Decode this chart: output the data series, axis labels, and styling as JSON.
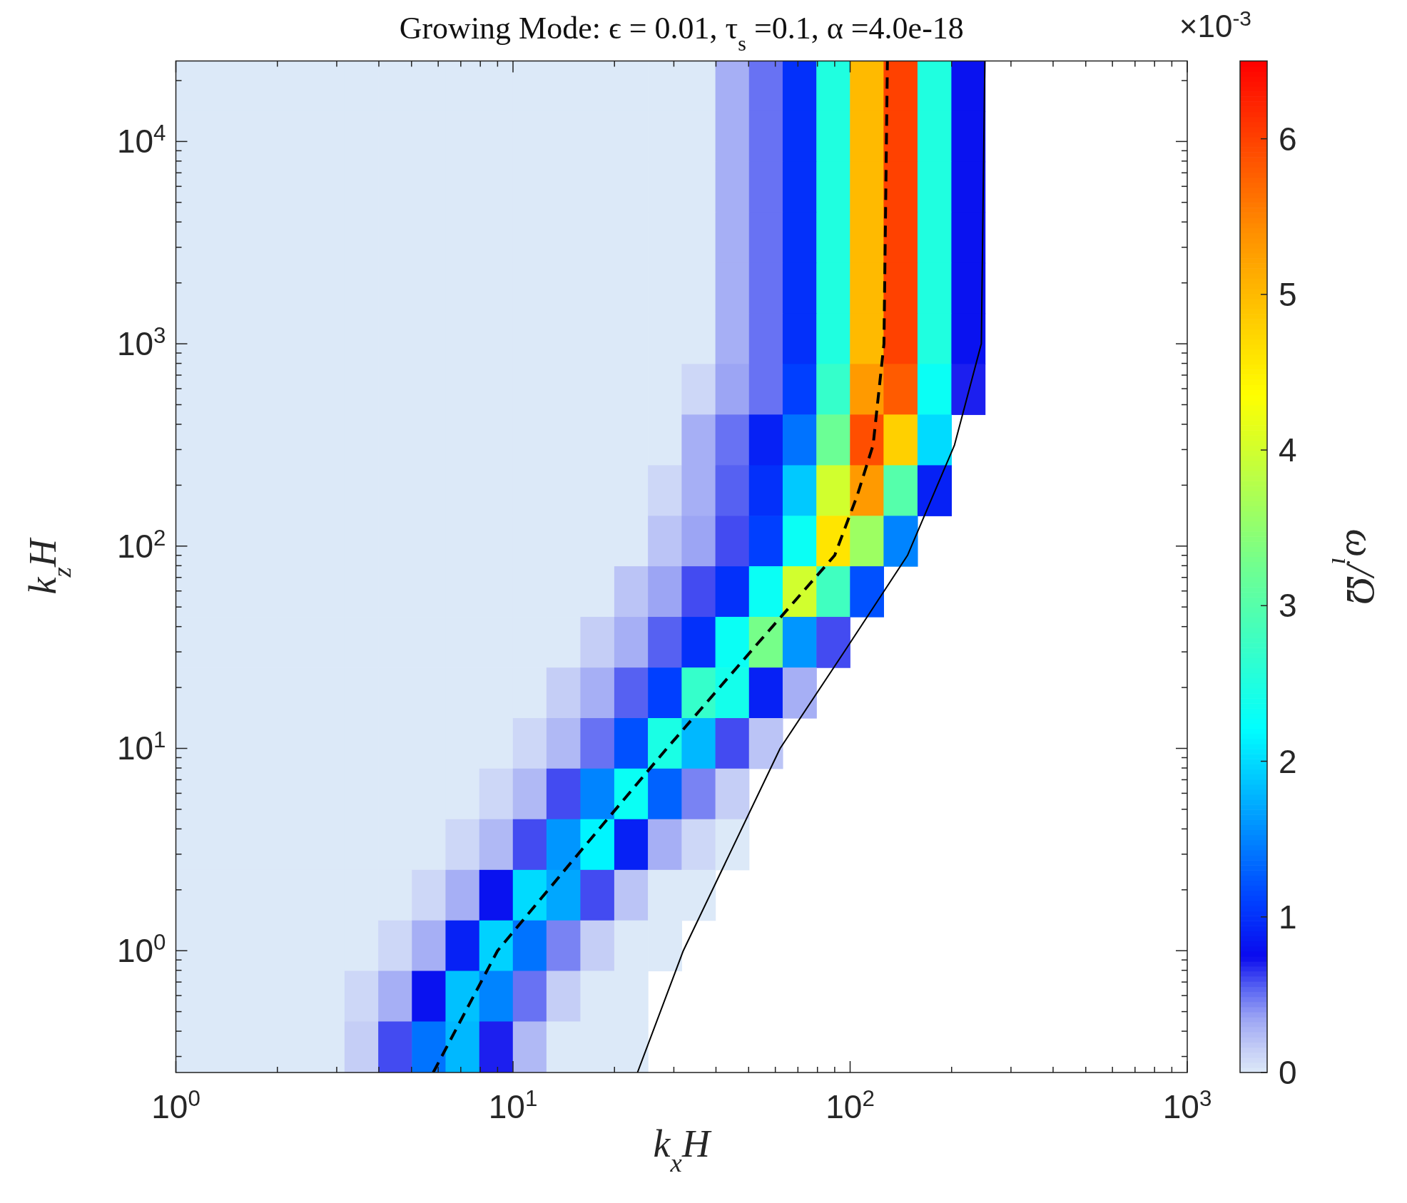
{
  "chart_data": {
    "type": "heatmap",
    "title": "Growing Mode: ϵ = 0.01, τ$_{s}$ =0.1, α =4.0e-18",
    "xlabel": "k$_{x}$H",
    "ylabel": "k$_{z}$H",
    "clabel": "ω$_{i}$/Ω",
    "annotations": [
      "×10$^{-3}$"
    ],
    "log": "xy",
    "grid": false,
    "xlim": [
      1,
      1000
    ],
    "ylim": [
      0.25,
      25000
    ],
    "xticks": [
      {
        "value": 1,
        "label": "10$^{0}$"
      },
      {
        "value": 2,
        "label": null
      },
      {
        "value": 3,
        "label": null
      },
      {
        "value": 4,
        "label": null
      },
      {
        "value": 5,
        "label": null
      },
      {
        "value": 6,
        "label": null
      },
      {
        "value": 7,
        "label": null
      },
      {
        "value": 8,
        "label": null
      },
      {
        "value": 9,
        "label": null
      },
      {
        "value": 10,
        "label": "10$^{1}$"
      },
      {
        "value": 20,
        "label": null
      },
      {
        "value": 30,
        "label": null
      },
      {
        "value": 40,
        "label": null
      },
      {
        "value": 50,
        "label": null
      },
      {
        "value": 60,
        "label": null
      },
      {
        "value": 70,
        "label": null
      },
      {
        "value": 80,
        "label": null
      },
      {
        "value": 90,
        "label": null
      },
      {
        "value": 100,
        "label": "10$^{2}$"
      },
      {
        "value": 200,
        "label": null
      },
      {
        "value": 300,
        "label": null
      },
      {
        "value": 400,
        "label": null
      },
      {
        "value": 500,
        "label": null
      },
      {
        "value": 600,
        "label": null
      },
      {
        "value": 700,
        "label": null
      },
      {
        "value": 800,
        "label": null
      },
      {
        "value": 900,
        "label": null
      },
      {
        "value": 1000,
        "label": "10$^{3}$"
      }
    ],
    "yticks": [
      {
        "value": 0.3,
        "label": null
      },
      {
        "value": 0.4,
        "label": null
      },
      {
        "value": 0.5,
        "label": null
      },
      {
        "value": 0.6,
        "label": null
      },
      {
        "value": 0.7,
        "label": null
      },
      {
        "value": 0.8,
        "label": null
      },
      {
        "value": 0.9,
        "label": null
      },
      {
        "value": 1,
        "label": "10$^{0}$"
      },
      {
        "value": 2,
        "label": null
      },
      {
        "value": 3,
        "label": null
      },
      {
        "value": 4,
        "label": null
      },
      {
        "value": 5,
        "label": null
      },
      {
        "value": 6,
        "label": null
      },
      {
        "value": 7,
        "label": null
      },
      {
        "value": 8,
        "label": null
      },
      {
        "value": 9,
        "label": null
      },
      {
        "value": 10,
        "label": "10$^{1}$"
      },
      {
        "value": 20,
        "label": null
      },
      {
        "value": 30,
        "label": null
      },
      {
        "value": 40,
        "label": null
      },
      {
        "value": 50,
        "label": null
      },
      {
        "value": 60,
        "label": null
      },
      {
        "value": 70,
        "label": null
      },
      {
        "value": 80,
        "label": null
      },
      {
        "value": 90,
        "label": null
      },
      {
        "value": 100,
        "label": "10$^{2}$"
      },
      {
        "value": 200,
        "label": null
      },
      {
        "value": 300,
        "label": null
      },
      {
        "value": 400,
        "label": null
      },
      {
        "value": 500,
        "label": null
      },
      {
        "value": 600,
        "label": null
      },
      {
        "value": 700,
        "label": null
      },
      {
        "value": 800,
        "label": null
      },
      {
        "value": 900,
        "label": null
      },
      {
        "value": 1000,
        "label": "10$^{3}$"
      },
      {
        "value": 2000,
        "label": null
      },
      {
        "value": 3000,
        "label": null
      },
      {
        "value": 4000,
        "label": null
      },
      {
        "value": 5000,
        "label": null
      },
      {
        "value": 6000,
        "label": null
      },
      {
        "value": 7000,
        "label": null
      },
      {
        "value": 8000,
        "label": null
      },
      {
        "value": 9000,
        "label": null
      },
      {
        "value": 10000,
        "label": "10$^{4}$"
      },
      {
        "value": 20000,
        "label": null
      }
    ],
    "clim": [
      0,
      6.5
    ],
    "cticks": [
      0,
      1,
      2,
      3,
      4,
      5,
      6
    ],
    "x": [
      1.12,
      1.41,
      1.78,
      2.24,
      2.82,
      3.55,
      4.47,
      5.62,
      7.08,
      8.91,
      11.2,
      14.1,
      17.8,
      22.4,
      28.2,
      35.5,
      44.7,
      56.2,
      70.8,
      89.1,
      112,
      141,
      178,
      224,
      282,
      355,
      447,
      562,
      708,
      891
    ],
    "y": [
      18800,
      10600,
      5960,
      3350,
      1880,
      1060,
      596,
      335,
      188,
      106,
      59.6,
      33.5,
      18.8,
      10.6,
      5.96,
      3.35,
      1.88,
      1.06,
      0.596,
      0.335
    ],
    "cells": [
      [
        0,
        0,
        0,
        0,
        0,
        0,
        0,
        0,
        0,
        0,
        0,
        0,
        0,
        0,
        0,
        0,
        0.3,
        0.5,
        1.0,
        2.5,
        5.0,
        6.0,
        2.5,
        0.8,
        null,
        null,
        null,
        null,
        null,
        null
      ],
      [
        0,
        0,
        0,
        0,
        0,
        0,
        0,
        0,
        0,
        0,
        0,
        0,
        0,
        0,
        0,
        0,
        0.3,
        0.5,
        1.0,
        2.5,
        5.0,
        6.0,
        2.5,
        0.8,
        null,
        null,
        null,
        null,
        null,
        null
      ],
      [
        0,
        0,
        0,
        0,
        0,
        0,
        0,
        0,
        0,
        0,
        0,
        0,
        0,
        0,
        0,
        0,
        0.3,
        0.5,
        1.0,
        2.5,
        5.0,
        6.0,
        2.5,
        0.8,
        null,
        null,
        null,
        null,
        null,
        null
      ],
      [
        0,
        0,
        0,
        0,
        0,
        0,
        0,
        0,
        0,
        0,
        0,
        0,
        0,
        0,
        0,
        0,
        0.3,
        0.5,
        1.0,
        2.5,
        5.0,
        6.0,
        2.5,
        0.8,
        null,
        null,
        null,
        null,
        null,
        null
      ],
      [
        0,
        0,
        0,
        0,
        0,
        0,
        0,
        0,
        0,
        0,
        0,
        0,
        0,
        0,
        0,
        0,
        0.3,
        0.5,
        1.0,
        2.5,
        5.0,
        6.0,
        2.5,
        0.8,
        null,
        null,
        null,
        null,
        null,
        null
      ],
      [
        0,
        0,
        0,
        0,
        0,
        0,
        0,
        0,
        0,
        0,
        0,
        0,
        0,
        0,
        0,
        0,
        0.3,
        0.5,
        1.0,
        2.5,
        5.0,
        6.0,
        2.5,
        0.8,
        null,
        null,
        null,
        null,
        null,
        null
      ],
      [
        0,
        0,
        0,
        0,
        0,
        0,
        0,
        0,
        0,
        0,
        0,
        0,
        0,
        0,
        0,
        0.1,
        0.35,
        0.5,
        1.1,
        2.7,
        5.3,
        5.8,
        2.3,
        0.7,
        null,
        null,
        null,
        null,
        null,
        null
      ],
      [
        0,
        0,
        0,
        0,
        0,
        0,
        0,
        0,
        0,
        0,
        0,
        0,
        0,
        0,
        0,
        0.3,
        0.5,
        0.9,
        1.4,
        3.2,
        5.9,
        4.8,
        2.0,
        null,
        null,
        null,
        null,
        null,
        null,
        null
      ],
      [
        0,
        0,
        0,
        0,
        0,
        0,
        0,
        0,
        0,
        0,
        0,
        0,
        0,
        0,
        0.1,
        0.3,
        0.55,
        1.0,
        1.9,
        4.0,
        5.3,
        3.0,
        0.9,
        null,
        null,
        null,
        null,
        null,
        null,
        null
      ],
      [
        0,
        0,
        0,
        0,
        0,
        0,
        0,
        0,
        0,
        0,
        0,
        0,
        0,
        0,
        0.2,
        0.35,
        0.6,
        1.1,
        2.3,
        4.6,
        3.6,
        1.5,
        null,
        null,
        null,
        null,
        null,
        null,
        null,
        null
      ],
      [
        0,
        0,
        0,
        0,
        0,
        0,
        0,
        0,
        0,
        0,
        0,
        0,
        0,
        0.2,
        0.35,
        0.6,
        1.0,
        2.3,
        4.0,
        2.8,
        1.2,
        null,
        null,
        null,
        null,
        null,
        null,
        null,
        null,
        null
      ],
      [
        0,
        0,
        0,
        0,
        0,
        0,
        0,
        0,
        0,
        0,
        0,
        0,
        0.15,
        0.3,
        0.55,
        1.0,
        2.3,
        3.3,
        1.6,
        0.6,
        null,
        null,
        null,
        null,
        null,
        null,
        null,
        null,
        null,
        null
      ],
      [
        0,
        0,
        0,
        0,
        0,
        0,
        0,
        0,
        0,
        0,
        0,
        0.15,
        0.3,
        0.55,
        1.1,
        2.7,
        2.4,
        0.9,
        0.3,
        null,
        null,
        null,
        null,
        null,
        null,
        null,
        null,
        null,
        null,
        null
      ],
      [
        0,
        0,
        0,
        0,
        0,
        0,
        0,
        0,
        0,
        0,
        0.1,
        0.25,
        0.5,
        1.2,
        2.45,
        1.8,
        0.6,
        0.2,
        null,
        null,
        null,
        null,
        null,
        null,
        null,
        null,
        null,
        null,
        null,
        null
      ],
      [
        0,
        0,
        0,
        0,
        0,
        0,
        0,
        0,
        0,
        0.1,
        0.25,
        0.6,
        1.5,
        2.3,
        1.3,
        0.45,
        0.15,
        null,
        null,
        null,
        null,
        null,
        null,
        null,
        null,
        null,
        null,
        null,
        null,
        null
      ],
      [
        0,
        0,
        0,
        0,
        0,
        0,
        0,
        0,
        0.1,
        0.25,
        0.6,
        1.6,
        2.15,
        0.9,
        0.3,
        0.1,
        0,
        null,
        null,
        null,
        null,
        null,
        null,
        null,
        null,
        null,
        null,
        null,
        null,
        null
      ],
      [
        0,
        0,
        0,
        0,
        0,
        0,
        0,
        0.1,
        0.3,
        0.8,
        2.0,
        1.7,
        0.6,
        0.2,
        0,
        0,
        null,
        null,
        null,
        null,
        null,
        null,
        null,
        null,
        null,
        null,
        null,
        null,
        null,
        null
      ],
      [
        0,
        0,
        0,
        0,
        0,
        0,
        0.1,
        0.3,
        0.9,
        1.95,
        1.4,
        0.45,
        0.15,
        0,
        0,
        null,
        null,
        null,
        null,
        null,
        null,
        null,
        null,
        null,
        null,
        null,
        null,
        null,
        null,
        null
      ],
      [
        0,
        0,
        0,
        0,
        0,
        0.1,
        0.3,
        0.8,
        1.85,
        1.5,
        0.5,
        0.15,
        0,
        0,
        null,
        null,
        null,
        null,
        null,
        null,
        null,
        null,
        null,
        null,
        null,
        null,
        null,
        null,
        null,
        null
      ],
      [
        0,
        0,
        0,
        0,
        0,
        0.15,
        0.6,
        1.4,
        1.8,
        0.7,
        0.25,
        0,
        0,
        0,
        null,
        null,
        null,
        null,
        null,
        null,
        null,
        null,
        null,
        null,
        null,
        null,
        null,
        null,
        null,
        null
      ]
    ],
    "series": [
      {
        "type": "line",
        "color": "#000000",
        "line_style": "dashed",
        "x": [
          5.8,
          9.0,
          16,
          28.6,
          52,
          90,
          105,
          117,
          126,
          129
        ],
        "values": [
          0.25,
          1,
          3.16,
          10,
          31.6,
          90,
          178,
          316,
          1000,
          25000
        ]
      },
      {
        "type": "line",
        "color": "#000000",
        "line_style": "solid",
        "x": [
          23.4,
          32,
          62,
          98,
          148,
          204,
          245,
          251
        ],
        "values": [
          0.25,
          1,
          10,
          31.6,
          90,
          316,
          1000,
          25000
        ]
      }
    ]
  }
}
